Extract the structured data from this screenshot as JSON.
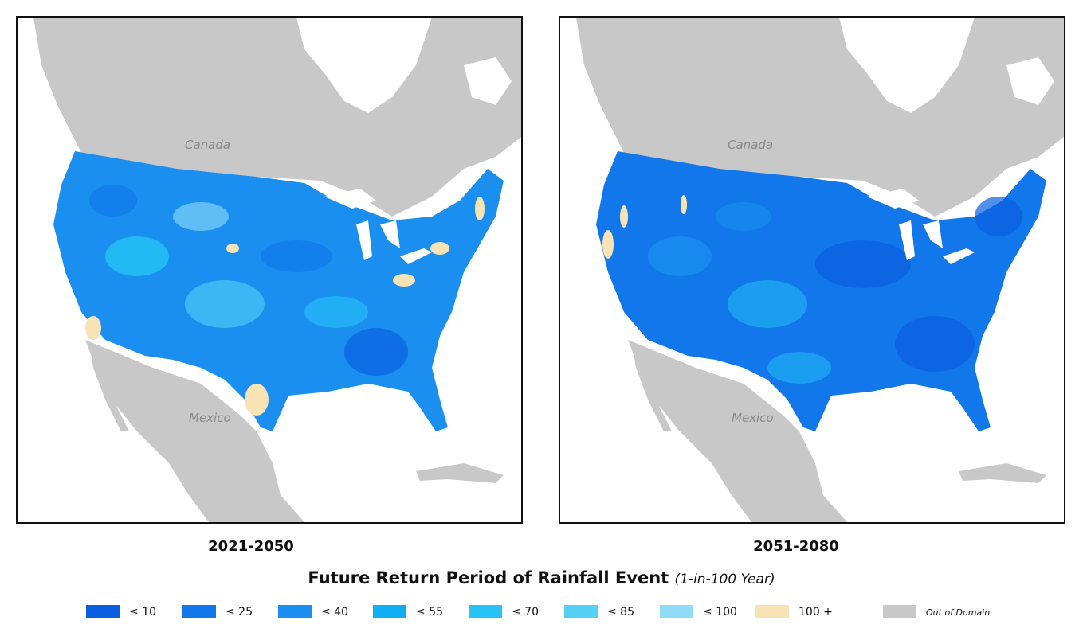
{
  "maps": [
    {
      "period": "2021-2050",
      "labels": {
        "canada": "Canada",
        "mexico": "Mexico"
      }
    },
    {
      "period": "2051-2080",
      "labels": {
        "canada": "Canada",
        "mexico": "Mexico"
      }
    }
  ],
  "legend": {
    "title": "Future Return Period of Rainfall Event",
    "subtitle": "(1-in-100 Year)",
    "items": [
      {
        "label": "≤ 10",
        "color": "#0a5fe0"
      },
      {
        "label": "≤ 25",
        "color": "#1177ea"
      },
      {
        "label": "≤ 40",
        "color": "#1a8ff0"
      },
      {
        "label": "≤ 55",
        "color": "#0fb0f3"
      },
      {
        "label": "≤ 70",
        "color": "#26c3f6"
      },
      {
        "label": "≤ 85",
        "color": "#55d1f7"
      },
      {
        "label": "≤ 100",
        "color": "#8fdcf8"
      },
      {
        "label": "100 +",
        "color": "#f8e3b4"
      },
      {
        "label": "Out of Domain",
        "color": "#c8c8c8"
      }
    ]
  }
}
